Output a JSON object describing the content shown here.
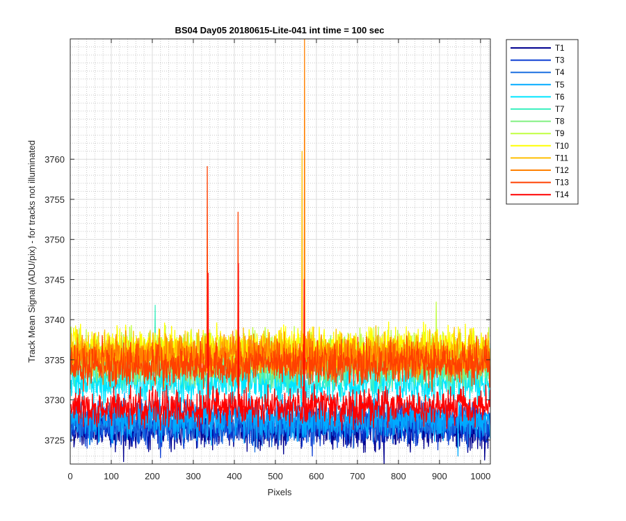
{
  "chart_data": {
    "type": "line",
    "title": "BS04 Day05 20180615-Lite-041 int time = 100 sec",
    "xlabel": "Pixels",
    "ylabel": "Track Mean Signal (ADU/pix) - for tracks not illuminated",
    "xlim": [
      0,
      1024
    ],
    "ylim": [
      3722,
      3775
    ],
    "xticks": [
      0,
      100,
      200,
      300,
      400,
      500,
      600,
      700,
      800,
      900,
      1000
    ],
    "yticks": [
      3725,
      3730,
      3735,
      3740,
      3745,
      3750,
      3755,
      3760
    ],
    "grid": true,
    "minor_grid": true,
    "legend_position": "outside-top-right",
    "series": [
      {
        "name": "T1",
        "color": "#00008f",
        "mean": 3726.3,
        "noise": 1.2,
        "spikes": [
          {
            "x": 130,
            "y": 3722.3
          },
          {
            "x": 765,
            "y": 3721.8
          },
          {
            "x": 1010,
            "y": 3722.5
          }
        ]
      },
      {
        "name": "T3",
        "color": "#0a3cd2",
        "mean": 3726.8,
        "noise": 1.2,
        "spikes": [
          {
            "x": 220,
            "y": 3722.8
          },
          {
            "x": 590,
            "y": 3723.0
          }
        ]
      },
      {
        "name": "T4",
        "color": "#1a6fe0",
        "mean": 3727.2,
        "noise": 1.2,
        "spikes": [
          {
            "x": 450,
            "y": 3723.5
          }
        ]
      },
      {
        "name": "T5",
        "color": "#00aaff",
        "mean": 3727.7,
        "noise": 1.2,
        "spikes": [
          {
            "x": 945,
            "y": 3723.0
          }
        ]
      },
      {
        "name": "T6",
        "color": "#00e5ff",
        "mean": 3732.0,
        "noise": 1.2,
        "spikes": []
      },
      {
        "name": "T7",
        "color": "#3ef0c0",
        "mean": 3733.8,
        "noise": 1.3,
        "spikes": [
          {
            "x": 207,
            "y": 3741.8
          }
        ]
      },
      {
        "name": "T8",
        "color": "#80f080",
        "mean": 3734.6,
        "noise": 1.3,
        "spikes": []
      },
      {
        "name": "T9",
        "color": "#c0ff40",
        "mean": 3736.0,
        "noise": 1.3,
        "spikes": [
          {
            "x": 892,
            "y": 3742.2
          }
        ]
      },
      {
        "name": "T10",
        "color": "#ffff00",
        "mean": 3736.4,
        "noise": 1.3,
        "spikes": []
      },
      {
        "name": "T11",
        "color": "#ffbf00",
        "mean": 3735.8,
        "noise": 1.3,
        "spikes": [
          {
            "x": 565,
            "y": 3761.0
          }
        ]
      },
      {
        "name": "T12",
        "color": "#ff8000",
        "mean": 3735.3,
        "noise": 1.3,
        "spikes": [
          {
            "x": 571,
            "y": 3775.0
          }
        ]
      },
      {
        "name": "T13",
        "color": "#ff4000",
        "mean": 3734.5,
        "noise": 1.3,
        "spikes": [
          {
            "x": 334,
            "y": 3759.1
          },
          {
            "x": 409,
            "y": 3753.4
          }
        ]
      },
      {
        "name": "T14",
        "color": "#ff0000",
        "mean": 3729.0,
        "noise": 1.1,
        "spikes": [
          {
            "x": 336,
            "y": 3745.8
          },
          {
            "x": 410,
            "y": 3747.0
          },
          {
            "x": 570,
            "y": 3745.0
          }
        ]
      }
    ]
  }
}
